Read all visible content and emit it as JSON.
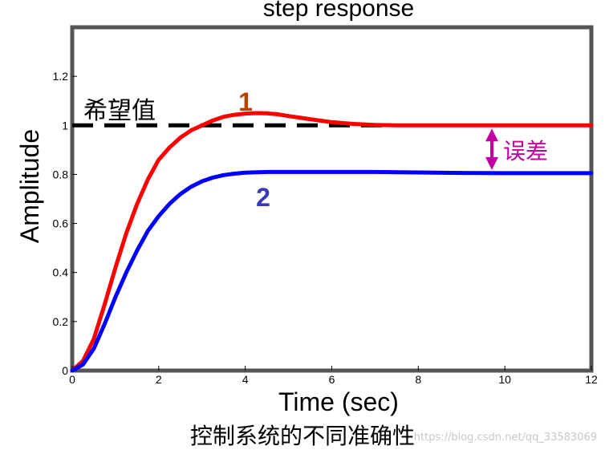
{
  "chart_data": {
    "type": "line",
    "title": "step response",
    "xlabel": "Time (sec)",
    "ylabel": "Amplitude",
    "xlim": [
      0,
      12
    ],
    "ylim": [
      0,
      1.4
    ],
    "xticks": [
      "0",
      "2",
      "4",
      "6",
      "8",
      "10",
      "12"
    ],
    "yticks": [
      "0",
      "0.2",
      "0.4",
      "0.6",
      "0.8",
      "1",
      "1.2"
    ],
    "grid": false,
    "series": [
      {
        "name": "1",
        "color": "#ff0000",
        "x": [
          0,
          0.25,
          0.5,
          0.75,
          1,
          1.25,
          1.5,
          1.75,
          2,
          2.25,
          2.5,
          2.75,
          3,
          3.25,
          3.5,
          3.75,
          4,
          4.25,
          4.5,
          4.75,
          5,
          5.5,
          6,
          6.5,
          7,
          7.5,
          8,
          9,
          10,
          11,
          12
        ],
        "y": [
          0,
          0.04,
          0.13,
          0.27,
          0.42,
          0.56,
          0.68,
          0.78,
          0.86,
          0.91,
          0.95,
          0.98,
          1.0,
          1.02,
          1.035,
          1.043,
          1.048,
          1.05,
          1.049,
          1.045,
          1.038,
          1.025,
          1.013,
          1.006,
          1.002,
          1.0,
          1.0,
          1.0,
          1.0,
          1.0,
          1.0
        ]
      },
      {
        "name": "2",
        "color": "#0000ff",
        "x": [
          0,
          0.25,
          0.5,
          0.75,
          1,
          1.25,
          1.5,
          1.75,
          2,
          2.25,
          2.5,
          2.75,
          3,
          3.25,
          3.5,
          3.75,
          4,
          4.5,
          5,
          6,
          7,
          8,
          9,
          10,
          11,
          12
        ],
        "y": [
          0,
          0.025,
          0.09,
          0.19,
          0.3,
          0.4,
          0.49,
          0.57,
          0.63,
          0.68,
          0.72,
          0.75,
          0.772,
          0.787,
          0.797,
          0.803,
          0.807,
          0.81,
          0.81,
          0.81,
          0.81,
          0.808,
          0.806,
          0.805,
          0.805,
          0.805
        ]
      }
    ],
    "reference": {
      "label": "希望值",
      "value": 1.0,
      "color": "#000000",
      "x_range": [
        0,
        7.4
      ]
    },
    "annotations": {
      "curve1_label": "1",
      "curve1_color": "#c04000",
      "curve2_label": "2",
      "curve2_color": "#3a3ab8",
      "error_label": "误差",
      "error_color": "#c000a0",
      "error_x": 9.7
    }
  },
  "caption": "控制系统的不同准确性",
  "watermark": "https://blog.csdn.net/qq_33583069"
}
